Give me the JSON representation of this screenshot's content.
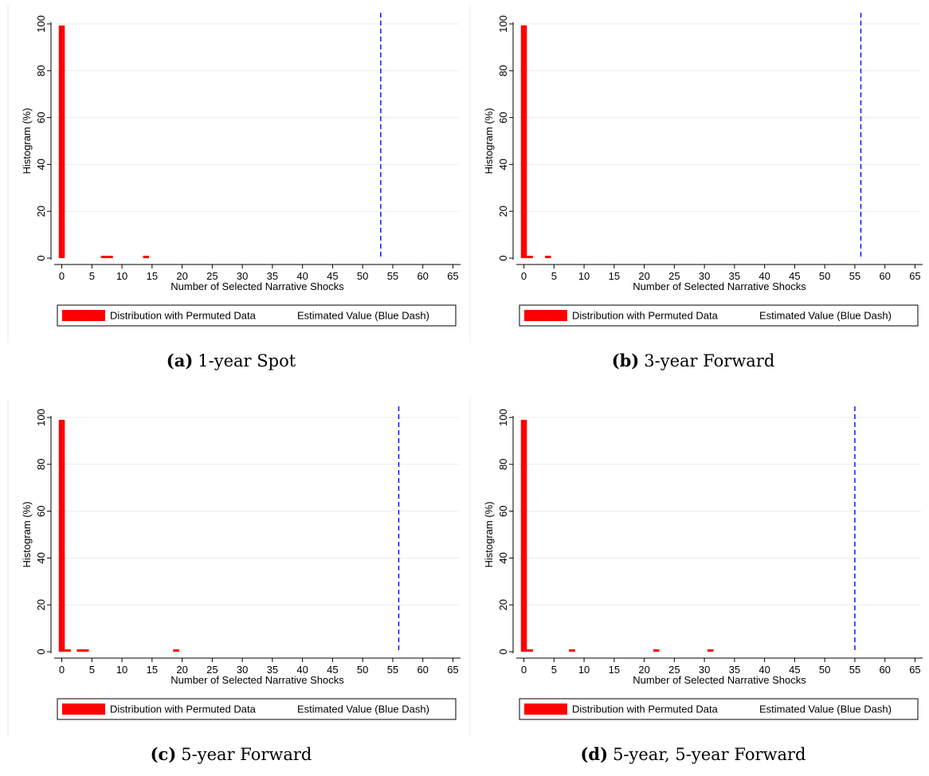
{
  "chart_data": [
    {
      "type": "bar",
      "caption_tag": "(a)",
      "caption_text": "1-year Spot",
      "xlabel": "Number of Selected Narrative Shocks",
      "ylabel": "Histogram (%)",
      "xticks": [
        "0",
        "5",
        "10",
        "15",
        "20",
        "25",
        "30",
        "35",
        "40",
        "45",
        "50",
        "55",
        "60",
        "65"
      ],
      "yticks": [
        "0",
        "20",
        "40",
        "60",
        "80",
        "100"
      ],
      "xlim": [
        -1,
        66
      ],
      "ylim": [
        0,
        100
      ],
      "grid": true,
      "legend_position": "bottom",
      "series": [
        {
          "name": "Distribution with Permuted Data",
          "color": "#ff0000",
          "x": [
            0,
            7,
            8,
            14
          ],
          "values": [
            99.3,
            0.2,
            0.2,
            0.2
          ]
        },
        {
          "name": "Estimated Value (Blue Dash)",
          "color": "#0000ff",
          "vline": 53
        }
      ]
    },
    {
      "type": "bar",
      "caption_tag": "(b)",
      "caption_text": "3-year Forward",
      "xlabel": "Number of Selected Narrative Shocks",
      "ylabel": "Histogram (%)",
      "xticks": [
        "0",
        "5",
        "10",
        "15",
        "20",
        "25",
        "30",
        "35",
        "40",
        "45",
        "50",
        "55",
        "60",
        "65"
      ],
      "yticks": [
        "0",
        "20",
        "40",
        "60",
        "80",
        "100"
      ],
      "xlim": [
        -1,
        66
      ],
      "ylim": [
        0,
        100
      ],
      "grid": true,
      "legend_position": "bottom",
      "series": [
        {
          "name": "Distribution with Permuted Data",
          "color": "#ff0000",
          "x": [
            0,
            1,
            4
          ],
          "values": [
            99.4,
            0.3,
            0.2
          ]
        },
        {
          "name": "Estimated Value (Blue Dash)",
          "color": "#0000ff",
          "vline": 56
        }
      ]
    },
    {
      "type": "bar",
      "caption_tag": "(c)",
      "caption_text": "5-year Forward",
      "xlabel": "Number of Selected Narrative Shocks",
      "ylabel": "Histogram (%)",
      "xticks": [
        "0",
        "5",
        "10",
        "15",
        "20",
        "25",
        "30",
        "35",
        "40",
        "45",
        "50",
        "55",
        "60",
        "65"
      ],
      "yticks": [
        "0",
        "20",
        "40",
        "60",
        "80",
        "100"
      ],
      "xlim": [
        -1,
        66
      ],
      "ylim": [
        0,
        100
      ],
      "grid": true,
      "legend_position": "bottom",
      "series": [
        {
          "name": "Distribution with Permuted Data",
          "color": "#ff0000",
          "x": [
            0,
            1,
            3,
            4,
            19
          ],
          "values": [
            99.0,
            0.3,
            0.2,
            0.2,
            0.2
          ]
        },
        {
          "name": "Estimated Value (Blue Dash)",
          "color": "#0000ff",
          "vline": 56
        }
      ]
    },
    {
      "type": "bar",
      "caption_tag": "(d)",
      "caption_text": "5-year, 5-year Forward",
      "xlabel": "Number of Selected Narrative Shocks",
      "ylabel": "Histogram (%)",
      "xticks": [
        "0",
        "5",
        "10",
        "15",
        "20",
        "25",
        "30",
        "35",
        "40",
        "45",
        "50",
        "55",
        "60",
        "65"
      ],
      "yticks": [
        "0",
        "20",
        "40",
        "60",
        "80",
        "100"
      ],
      "xlim": [
        -1,
        66
      ],
      "ylim": [
        0,
        100
      ],
      "grid": true,
      "legend_position": "bottom",
      "series": [
        {
          "name": "Distribution with Permuted Data",
          "color": "#ff0000",
          "x": [
            0,
            1,
            8,
            22,
            31
          ],
          "values": [
            99.0,
            0.3,
            0.2,
            0.2,
            0.2
          ]
        },
        {
          "name": "Estimated Value (Blue Dash)",
          "color": "#0000ff",
          "vline": 55
        }
      ]
    }
  ]
}
